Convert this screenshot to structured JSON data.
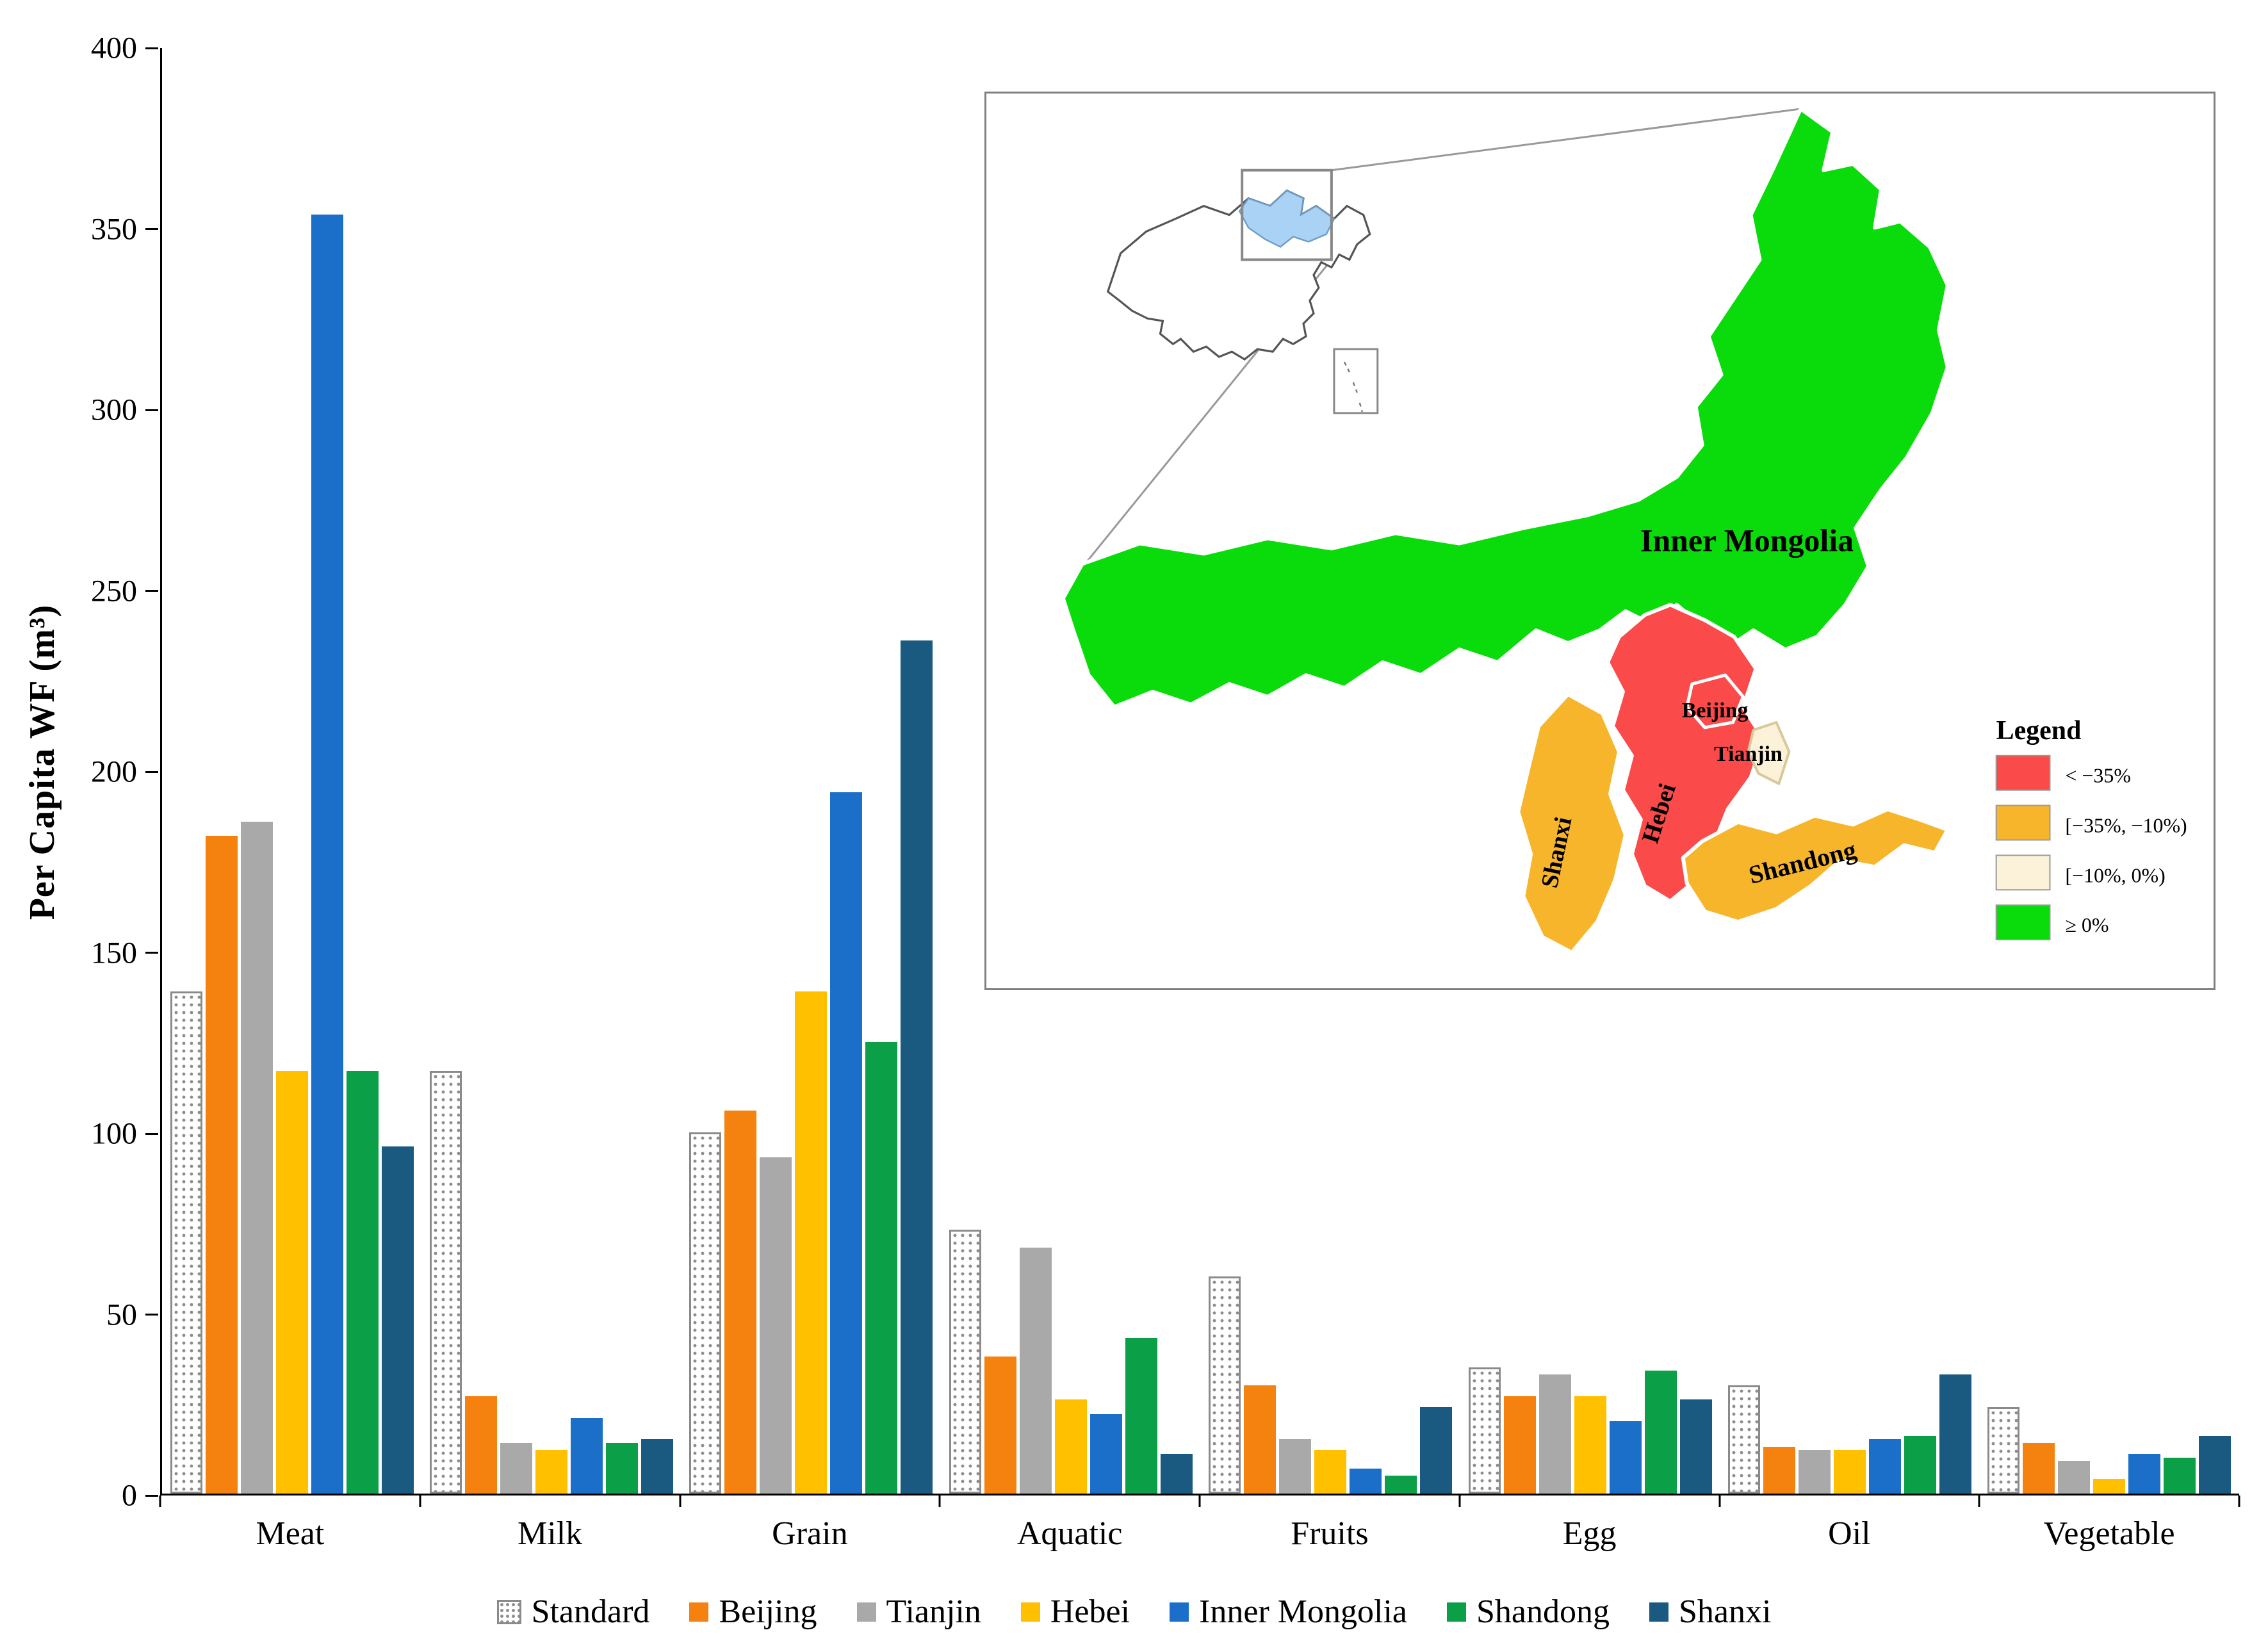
{
  "axis": {
    "ylabel": "Per Capita WF (m³)"
  },
  "chart_data": {
    "type": "bar",
    "title": "",
    "xlabel": "",
    "ylabel": "Per Capita WF (m³)",
    "ylim": [
      0,
      400
    ],
    "ytick_step": 50,
    "grid": false,
    "legend_position": "bottom",
    "categories": [
      "Meat",
      "Milk",
      "Grain",
      "Aquatic",
      "Fruits",
      "Egg",
      "Oil",
      "Vegetable"
    ],
    "series": [
      {
        "name": "Standard",
        "pattern": true,
        "color": "#FFFFFF",
        "values": [
          139,
          117,
          100,
          73,
          60,
          35,
          30,
          24
        ]
      },
      {
        "name": "Beijing",
        "color": "#F5820F",
        "values": [
          182,
          27,
          106,
          38,
          30,
          27,
          13,
          14
        ]
      },
      {
        "name": "Tianjin",
        "color": "#A9A9A9",
        "values": [
          186,
          14,
          93,
          68,
          15,
          33,
          12,
          9
        ]
      },
      {
        "name": "Hebei",
        "color": "#FFC000",
        "values": [
          117,
          12,
          139,
          26,
          12,
          27,
          12,
          4
        ]
      },
      {
        "name": "Inner Mongolia",
        "color": "#1B6FC9",
        "values": [
          354,
          21,
          194,
          22,
          7,
          20,
          15,
          11
        ]
      },
      {
        "name": "Shandong",
        "color": "#0B9F47",
        "values": [
          117,
          14,
          125,
          43,
          5,
          34,
          16,
          10
        ]
      },
      {
        "name": "Shanxi",
        "color": "#1A5A80",
        "values": [
          96,
          15,
          236,
          11,
          24,
          26,
          33,
          16
        ]
      }
    ]
  },
  "map_inset": {
    "labels": {
      "inner_mongolia": "Inner Mongolia",
      "beijing": "Beijing",
      "tianjin": "Tianjin",
      "shanxi": "Shanxi",
      "hebei": "Hebei",
      "shandong": "Shandong"
    },
    "legend": {
      "title": "Legend",
      "items": [
        {
          "label": "< −35%",
          "color": "#FA4A4A"
        },
        {
          "label": "[−35%, −10%)",
          "color": "#F7B52C"
        },
        {
          "label": "[−10%, 0%)",
          "color": "#FCF2DA"
        },
        {
          "label": "≥ 0%",
          "color": "#0ADB0A"
        }
      ]
    },
    "colors": {
      "decline_severe": "#FA4A4A",
      "decline_moderate": "#F7B52C",
      "decline_slight": "#FCF2DA",
      "increase": "#0ADB0A",
      "study_area_highlight": "#A9D2F4"
    }
  }
}
